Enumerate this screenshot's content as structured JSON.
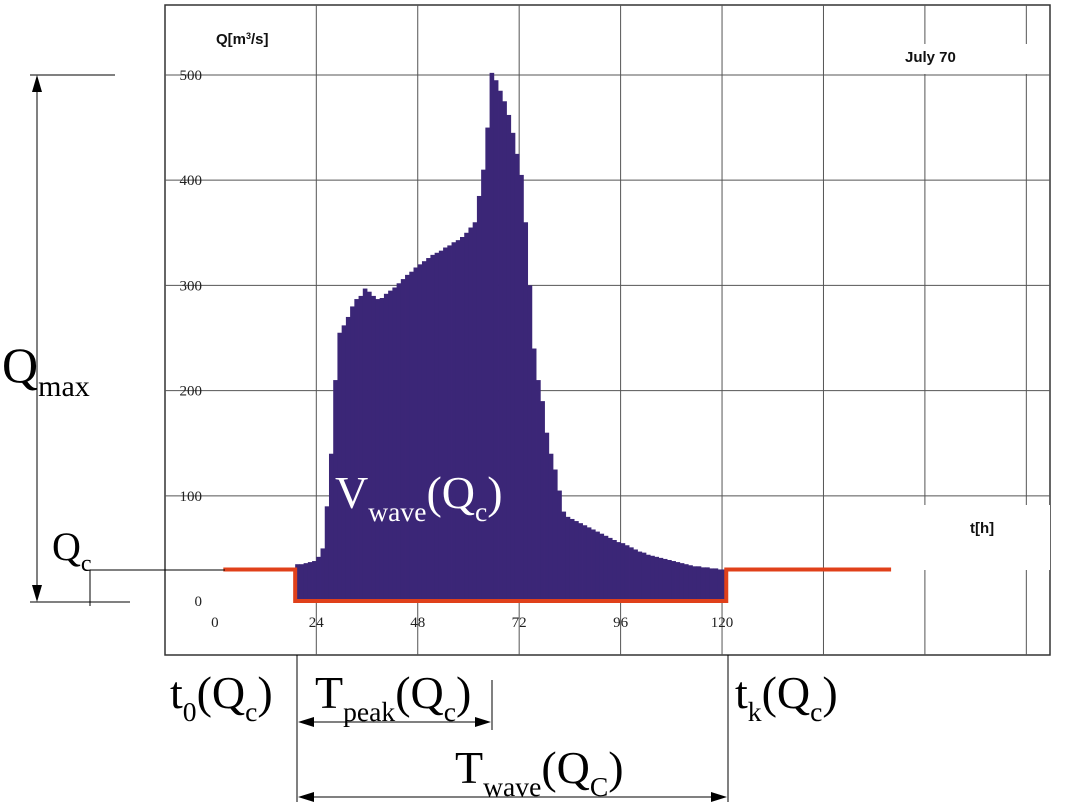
{
  "chart_data": {
    "type": "histogram",
    "y_label_parts": [
      {
        "text": "Q[m",
        "shift": "base"
      },
      {
        "text": "3",
        "shift": "sup"
      },
      {
        "text": "/s]",
        "shift": "base"
      }
    ],
    "note": "July 70",
    "x_label": "t[h]",
    "color": "#3b2677",
    "bins": [
      19,
      20,
      21,
      22,
      23,
      24,
      25,
      26,
      27,
      28,
      29,
      30,
      31,
      32,
      33,
      34,
      35,
      36,
      37,
      38,
      39,
      40,
      41,
      42,
      43,
      44,
      45,
      46,
      47,
      48,
      49,
      50,
      51,
      52,
      53,
      54,
      55,
      56,
      57,
      58,
      59,
      60,
      61,
      62,
      63,
      64,
      65,
      66,
      67,
      68,
      69,
      70,
      71,
      72,
      73,
      74,
      75,
      76,
      77,
      78,
      79,
      80,
      81,
      82,
      83,
      84,
      85,
      86,
      87,
      88,
      89,
      90,
      91,
      92,
      93,
      94,
      95,
      96,
      97,
      98,
      99,
      100,
      101,
      102,
      103,
      104,
      105,
      106,
      107,
      108,
      109,
      110,
      111,
      112,
      113,
      114,
      115,
      116,
      117,
      118,
      119,
      120,
      121
    ],
    "values": [
      35,
      35,
      36,
      37,
      38,
      42,
      50,
      90,
      140,
      210,
      255,
      262,
      270,
      280,
      287,
      290,
      297,
      294,
      290,
      287,
      288,
      292,
      295,
      298,
      302,
      306,
      310,
      313,
      317,
      320,
      323,
      326,
      329,
      331,
      333,
      336,
      338,
      341,
      343,
      346,
      350,
      355,
      360,
      385,
      410,
      450,
      502,
      495,
      485,
      475,
      462,
      445,
      425,
      405,
      360,
      300,
      240,
      210,
      190,
      160,
      140,
      125,
      105,
      85,
      80,
      78,
      76,
      74,
      72,
      70,
      68,
      66,
      64,
      62,
      60,
      58,
      56,
      55,
      53,
      51,
      49,
      47,
      46,
      44,
      43,
      42,
      41,
      40,
      39,
      38,
      37,
      36,
      35,
      34,
      33,
      33,
      32,
      32,
      31,
      31,
      30,
      30
    ],
    "threshold": {
      "value": 30,
      "from": 2,
      "to": 160,
      "color": "#e0401a"
    },
    "xlim": [
      -11.8,
      197.6
    ],
    "ylim": [
      -51.3,
      566.5
    ],
    "xticks": [
      0,
      24,
      48,
      72,
      96,
      120
    ],
    "xgrid": [
      24,
      48,
      72,
      96,
      120,
      144,
      168,
      192
    ],
    "yticks": [
      0,
      100,
      200,
      300,
      400,
      500
    ],
    "grid": true,
    "annotations": {
      "wave_volume": [
        {
          "text": "V",
          "shift": "base"
        },
        {
          "text": "wave",
          "shift": "sub"
        },
        {
          "text": "(Q",
          "shift": "base"
        },
        {
          "text": "c",
          "shift": "sub"
        },
        {
          "text": ")",
          "shift": "base"
        }
      ],
      "q_max": [
        {
          "text": "Q",
          "shift": "base"
        },
        {
          "text": "max",
          "shift": "sub"
        }
      ],
      "q_c": [
        {
          "text": "Q",
          "shift": "base"
        },
        {
          "text": "c",
          "shift": "sub"
        }
      ],
      "t_start": [
        {
          "text": "t",
          "shift": "base"
        },
        {
          "text": "0",
          "shift": "sub"
        },
        {
          "text": "(Q",
          "shift": "base"
        },
        {
          "text": "c",
          "shift": "sub"
        },
        {
          "text": ")",
          "shift": "base"
        }
      ],
      "t_peak": [
        {
          "text": "T",
          "shift": "base"
        },
        {
          "text": "peak",
          "shift": "sub"
        },
        {
          "text": "(Q",
          "shift": "base"
        },
        {
          "text": "c",
          "shift": "sub"
        },
        {
          "text": ")",
          "shift": "base"
        }
      ],
      "t_end": [
        {
          "text": "t",
          "shift": "base"
        },
        {
          "text": "k",
          "shift": "sub"
        },
        {
          "text": "(Q",
          "shift": "base"
        },
        {
          "text": "c",
          "shift": "sub"
        },
        {
          "text": ")",
          "shift": "base"
        }
      ],
      "t_wave": [
        {
          "text": "T",
          "shift": "base"
        },
        {
          "text": "wave",
          "shift": "sub"
        },
        {
          "text": "(Q",
          "shift": "base"
        },
        {
          "text": "C",
          "shift": "sub"
        },
        {
          "text": ")",
          "shift": "base"
        }
      ]
    }
  }
}
